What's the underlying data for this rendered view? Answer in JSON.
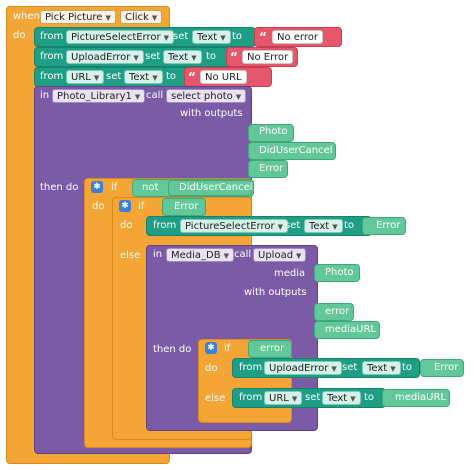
{
  "event": {
    "when": "when",
    "component": "Pick Picture",
    "event": "Click",
    "do": "do"
  },
  "set1": {
    "from": "from",
    "component": "PictureSelectError",
    "set": "set",
    "prop": "Text",
    "to": "to",
    "value": "No error"
  },
  "set2": {
    "from": "from",
    "component": "UploadError",
    "set": "set",
    "prop": "Text",
    "to": "to",
    "value": "No Error"
  },
  "set3": {
    "from": "from",
    "component": "URL",
    "set": "set",
    "prop": "Text",
    "to": "to",
    "value": "No URL"
  },
  "call1": {
    "in": "in",
    "component": "Photo_Library1",
    "call": "call",
    "method": "select photo",
    "with_outputs": "with outputs",
    "outputs": [
      "Photo",
      "DidUserCancel",
      "Error"
    ],
    "then_do": "then do"
  },
  "if1": {
    "if": "if",
    "not": "not",
    "var": "DidUserCancel",
    "do": "do"
  },
  "if2": {
    "if": "if",
    "var": "Error",
    "do": "do",
    "else": "else"
  },
  "set4": {
    "from": "from",
    "component": "PictureSelectError",
    "set": "set",
    "prop": "Text",
    "to": "to",
    "value": "Error"
  },
  "call2": {
    "in": "in",
    "component": "Media_DB",
    "call": "call",
    "method": "Upload",
    "media": "media",
    "media_value": "Photo",
    "with_outputs": "with outputs",
    "outputs": [
      "error",
      "mediaURL"
    ],
    "then_do": "then do"
  },
  "if3": {
    "if": "if",
    "var": "error",
    "do": "do",
    "else": "else"
  },
  "set5": {
    "from": "from",
    "component": "UploadError",
    "set": "set",
    "prop": "Text",
    "to": "to",
    "value": "Error"
  },
  "set6": {
    "from": "from",
    "component": "URL",
    "set": "set",
    "prop": "Text",
    "to": "to",
    "value": "mediaURL"
  }
}
